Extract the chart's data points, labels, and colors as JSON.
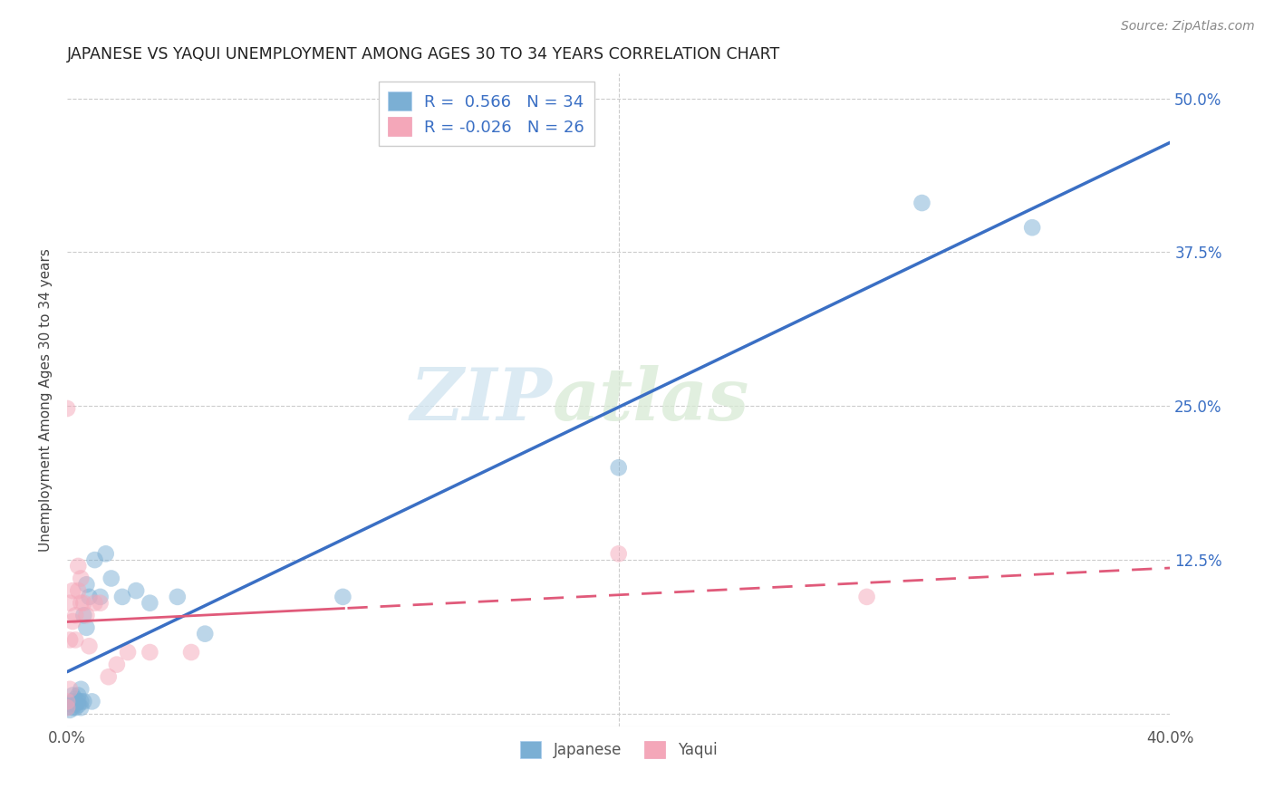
{
  "title": "JAPANESE VS YAQUI UNEMPLOYMENT AMONG AGES 30 TO 34 YEARS CORRELATION CHART",
  "source": "Source: ZipAtlas.com",
  "ylabel": "Unemployment Among Ages 30 to 34 years",
  "xlim": [
    0.0,
    0.4
  ],
  "ylim": [
    -0.01,
    0.52
  ],
  "yticks": [
    0.0,
    0.125,
    0.25,
    0.375,
    0.5
  ],
  "yticklabels_right": [
    "",
    "12.5%",
    "25.0%",
    "37.5%",
    "50.0%"
  ],
  "japanese_color": "#7bafd4",
  "yaqui_color": "#f4a7b9",
  "watermark_zip": "ZIP",
  "watermark_atlas": "atlas",
  "japanese_x": [
    0.0,
    0.001,
    0.001,
    0.002,
    0.002,
    0.002,
    0.003,
    0.003,
    0.003,
    0.004,
    0.004,
    0.004,
    0.005,
    0.005,
    0.005,
    0.006,
    0.006,
    0.007,
    0.007,
    0.008,
    0.009,
    0.01,
    0.012,
    0.014,
    0.016,
    0.02,
    0.025,
    0.03,
    0.04,
    0.05,
    0.1,
    0.2,
    0.31,
    0.35
  ],
  "japanese_y": [
    0.005,
    0.003,
    0.008,
    0.005,
    0.01,
    0.015,
    0.005,
    0.008,
    0.012,
    0.007,
    0.01,
    0.015,
    0.005,
    0.01,
    0.02,
    0.01,
    0.08,
    0.07,
    0.105,
    0.095,
    0.01,
    0.125,
    0.095,
    0.13,
    0.11,
    0.095,
    0.1,
    0.09,
    0.095,
    0.065,
    0.095,
    0.2,
    0.415,
    0.395
  ],
  "yaqui_x": [
    0.0,
    0.0,
    0.001,
    0.001,
    0.002,
    0.002,
    0.003,
    0.003,
    0.004,
    0.004,
    0.005,
    0.005,
    0.006,
    0.007,
    0.008,
    0.01,
    0.012,
    0.015,
    0.018,
    0.022,
    0.03,
    0.045,
    0.2,
    0.29,
    0.0,
    0.001
  ],
  "yaqui_y": [
    0.005,
    0.01,
    0.06,
    0.09,
    0.075,
    0.1,
    0.06,
    0.08,
    0.1,
    0.12,
    0.09,
    0.11,
    0.09,
    0.08,
    0.055,
    0.09,
    0.09,
    0.03,
    0.04,
    0.05,
    0.05,
    0.05,
    0.13,
    0.095,
    0.248,
    0.02
  ]
}
